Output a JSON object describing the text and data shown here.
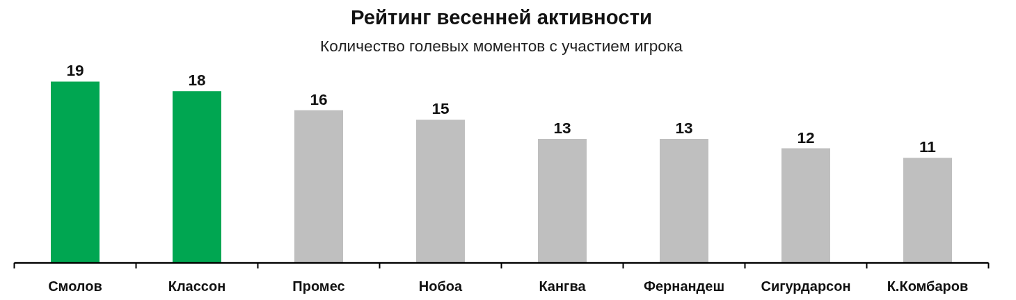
{
  "chart_data": {
    "type": "bar",
    "title": "Рейтинг весенней активности",
    "subtitle": "Количество голевых моментов с участием игрока",
    "categories": [
      "Смолов",
      "Классон",
      "Промес",
      "Нобоа",
      "Кангва",
      "Фернандеш",
      "Сигурдарсон",
      "К.Комбаров"
    ],
    "values": [
      19,
      18,
      16,
      15,
      13,
      13,
      12,
      11
    ],
    "colors": [
      "#00a651",
      "#00a651",
      "#bfbfbf",
      "#bfbfbf",
      "#bfbfbf",
      "#bfbfbf",
      "#bfbfbf",
      "#bfbfbf"
    ],
    "data_labels": true,
    "grid": false
  }
}
